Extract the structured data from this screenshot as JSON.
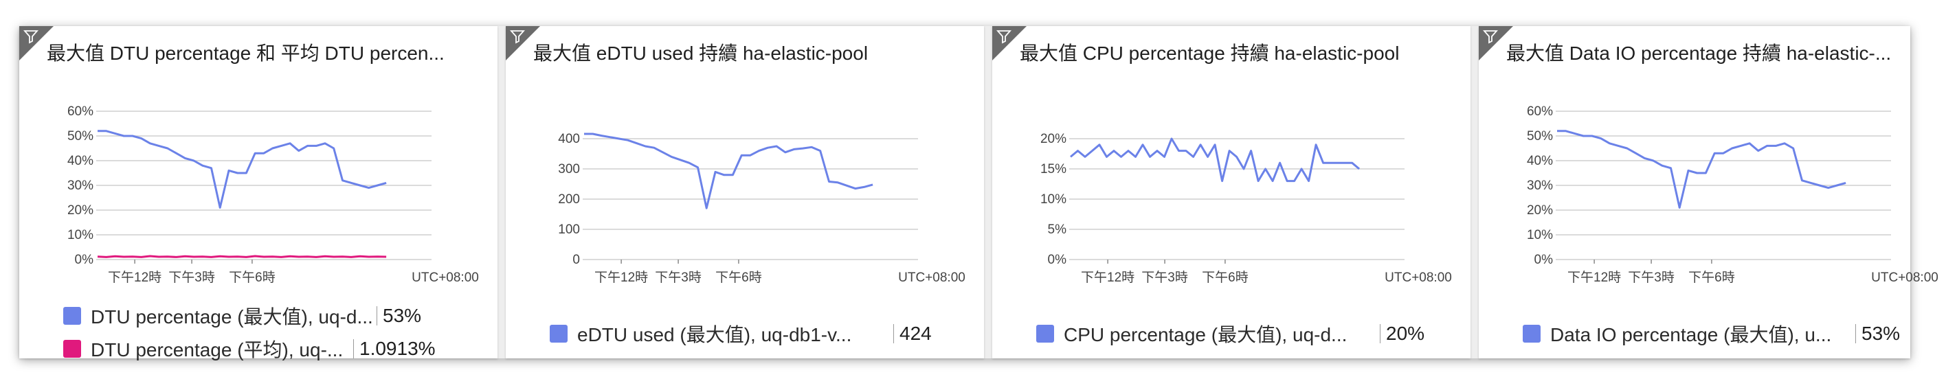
{
  "colors": {
    "primary": "#6b82e8",
    "secondary": "#e0197d",
    "grid": "#cfcfcf",
    "axis": "#555555"
  },
  "tiles": [
    {
      "title": "最大值 DTU percentage 和 平均 DTU percen...",
      "legend": [
        {
          "name": "DTU percentage (最大值), uq-d...",
          "value": "53%",
          "color": "#6b82e8"
        },
        {
          "name": "DTU percentage (平均), uq-...",
          "value": "1.0913%",
          "color": "#e0197d"
        }
      ]
    },
    {
      "title": "最大值 eDTU used 持續 ha-elastic-pool",
      "legend": [
        {
          "name": "eDTU used (最大值), uq-db1-v...",
          "value": "424",
          "color": "#6b82e8"
        }
      ]
    },
    {
      "title": "最大值 CPU percentage 持續 ha-elastic-pool",
      "legend": [
        {
          "name": "CPU percentage (最大值), uq-d...",
          "value": "20%",
          "color": "#6b82e8"
        }
      ]
    },
    {
      "title": "最大值 Data IO percentage 持續 ha-elastic-...",
      "legend": [
        {
          "name": "Data IO percentage (最大值), u...",
          "value": "53%",
          "color": "#6b82e8"
        }
      ]
    }
  ],
  "chart_data": [
    {
      "type": "line",
      "x_ticks": [
        "下午12時",
        "下午3時",
        "下午6時"
      ],
      "timezone_label": "UTC+08:00",
      "y_ticks": [
        "60%",
        "50%",
        "40%",
        "30%",
        "20%",
        "10%",
        "0%"
      ],
      "ylim": [
        0,
        60
      ],
      "grid": true,
      "series": [
        {
          "name": "DTU percentage (最大值), uq-d...",
          "color": "#6b82e8",
          "values": [
            52,
            52,
            51,
            50,
            50,
            49,
            47,
            46,
            45,
            43,
            41,
            40,
            38,
            37,
            21,
            36,
            35,
            35,
            43,
            43,
            45,
            46,
            47,
            44,
            46,
            46,
            47,
            45,
            32,
            31,
            30,
            29,
            30,
            31
          ]
        },
        {
          "name": "DTU percentage (平均), uq-...",
          "color": "#e0197d",
          "values": [
            1.2,
            1.0,
            1.3,
            1.1,
            1.2,
            1.0,
            1.4,
            1.1,
            1.2,
            1.0,
            1.3,
            1.1,
            1.2,
            1.0,
            1.3,
            1.1,
            1.2,
            1.0,
            1.4,
            1.1,
            1.2,
            1.0,
            1.3,
            1.1,
            1.2,
            1.0,
            1.3,
            1.1,
            1.2,
            1.0,
            1.3,
            1.1,
            1.2,
            1.1
          ]
        }
      ]
    },
    {
      "type": "line",
      "x_ticks": [
        "下午12時",
        "下午3時",
        "下午6時"
      ],
      "timezone_label": "UTC+08:00",
      "y_ticks": [
        "400",
        "300",
        "200",
        "100",
        "0"
      ],
      "ylim": [
        0,
        400
      ],
      "grid": true,
      "series": [
        {
          "name": "eDTU used (最大值), uq-db1-v...",
          "color": "#6b82e8",
          "values": [
            416,
            416,
            410,
            405,
            400,
            395,
            385,
            375,
            370,
            355,
            340,
            330,
            320,
            305,
            170,
            290,
            280,
            280,
            345,
            345,
            360,
            370,
            375,
            355,
            365,
            368,
            372,
            360,
            258,
            255,
            245,
            235,
            240,
            248
          ]
        }
      ]
    },
    {
      "type": "line",
      "x_ticks": [
        "下午12時",
        "下午3時",
        "下午6時"
      ],
      "timezone_label": "UTC+08:00",
      "y_ticks": [
        "20%",
        "15%",
        "10%",
        "5%",
        "0%"
      ],
      "ylim": [
        0,
        20
      ],
      "grid": true,
      "series": [
        {
          "name": "CPU percentage (最大值), uq-d...",
          "color": "#6b82e8",
          "values": [
            17,
            18,
            17,
            18,
            19,
            17,
            18,
            17,
            18,
            17,
            19,
            17,
            18,
            17,
            20,
            18,
            18,
            17,
            19,
            17,
            19,
            13,
            18,
            17,
            15,
            18,
            13,
            15,
            13,
            16,
            13,
            13,
            15,
            13,
            19,
            16,
            16,
            16,
            16,
            16,
            15
          ]
        }
      ]
    },
    {
      "type": "line",
      "x_ticks": [
        "下午12時",
        "下午3時",
        "下午6時"
      ],
      "timezone_label": "UTC+08:00",
      "y_ticks": [
        "60%",
        "50%",
        "40%",
        "30%",
        "20%",
        "10%",
        "0%"
      ],
      "ylim": [
        0,
        60
      ],
      "grid": true,
      "series": [
        {
          "name": "Data IO percentage (最大值), u...",
          "color": "#6b82e8",
          "values": [
            52,
            52,
            51,
            50,
            50,
            49,
            47,
            46,
            45,
            43,
            41,
            40,
            38,
            37,
            21,
            36,
            35,
            35,
            43,
            43,
            45,
            46,
            47,
            44,
            46,
            46,
            47,
            45,
            32,
            31,
            30,
            29,
            30,
            31
          ]
        }
      ]
    }
  ]
}
